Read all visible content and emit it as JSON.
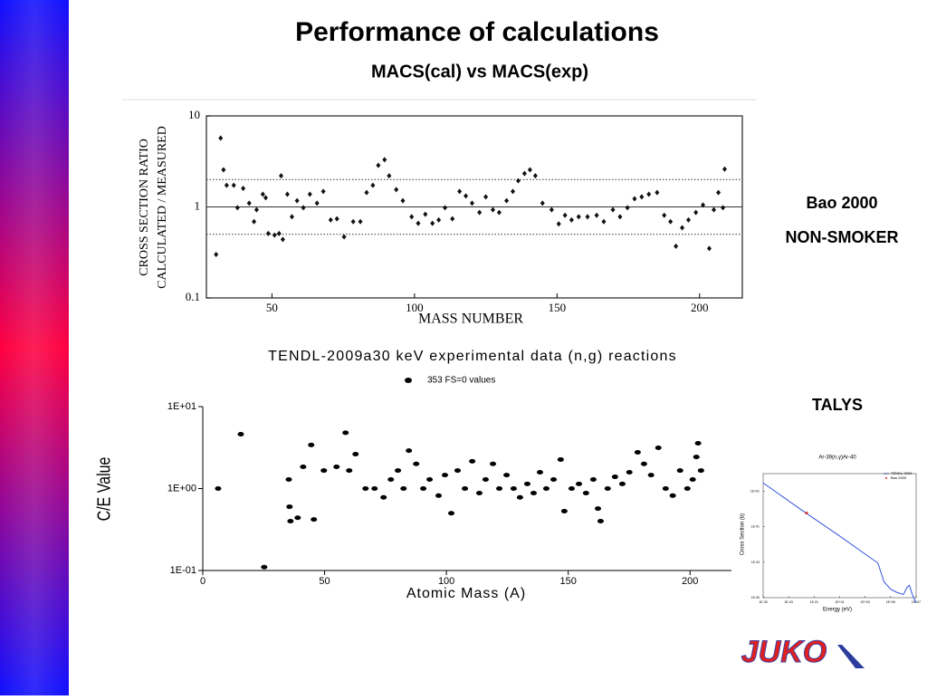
{
  "title": "Performance of calculations",
  "subtitle": "MACS(cal) vs MACS(exp)",
  "side_labels": [
    "Bao 2000",
    "NON-SMOKER",
    "TALYS"
  ],
  "logo": "JUKO",
  "chart_data": [
    {
      "type": "scatter",
      "xlabel": "MASS NUMBER",
      "ylabel": [
        "CROSS SECTION RATIO",
        "CALCULATED / MEASURED"
      ],
      "log_y": true,
      "xlim": [
        27,
        215
      ],
      "xticks": [
        50,
        100,
        150,
        200
      ],
      "ylim": [
        0.1,
        10
      ],
      "yticks": [
        0.1,
        1,
        10
      ],
      "hlines": [
        0.5,
        1,
        2
      ],
      "hline_styles": [
        "dotted",
        "solid",
        "dotted"
      ],
      "series": [
        {
          "color": "#111111",
          "x": [
            30.4,
            32,
            33,
            34.1,
            36.6,
            37.9,
            39.9,
            42,
            43.7,
            44.6,
            46.8,
            47.8,
            48.7,
            50.9,
            52.5,
            53.8,
            53.2,
            55.4,
            57,
            58.8,
            61,
            63.3,
            65.8,
            68,
            70.6,
            72.8,
            75.3,
            78.5,
            81,
            83.2,
            85.4,
            87.3,
            89.5,
            91.1,
            93.6,
            95.9,
            99,
            101.3,
            103.8,
            106.3,
            108.5,
            110.7,
            113.3,
            115.8,
            118,
            120.2,
            122.8,
            125,
            127.5,
            129.7,
            132.3,
            134.5,
            136.4,
            138.6,
            140.5,
            142.4,
            144.9,
            148.1,
            150.6,
            152.8,
            155.1,
            157.6,
            160.7,
            163.9,
            166.4,
            169.6,
            172.1,
            174.7,
            177.2,
            179.7,
            182.2,
            185.1,
            187.6,
            189.8,
            191.7,
            193.9,
            196.1,
            198.7,
            201.2,
            203.4,
            205,
            206.6,
            208.2,
            208.8
          ],
          "values": [
            0.3,
            5.7,
            2.56,
            1.73,
            1.73,
            0.98,
            1.6,
            1.1,
            0.69,
            0.93,
            1.38,
            1.26,
            0.51,
            0.49,
            0.51,
            0.44,
            2.2,
            1.38,
            0.78,
            1.17,
            0.98,
            1.38,
            1.1,
            1.48,
            0.72,
            0.74,
            0.47,
            0.69,
            0.69,
            1.44,
            1.73,
            2.86,
            3.3,
            2.2,
            1.55,
            1.17,
            0.78,
            0.66,
            0.83,
            0.66,
            0.72,
            0.98,
            0.74,
            1.48,
            1.32,
            1.1,
            0.87,
            1.29,
            0.93,
            0.87,
            1.17,
            1.48,
            1.94,
            2.33,
            2.56,
            2.2,
            1.1,
            0.93,
            0.65,
            0.81,
            0.72,
            0.78,
            0.78,
            0.81,
            0.69,
            0.93,
            0.78,
            0.98,
            1.23,
            1.29,
            1.38,
            1.44,
            0.81,
            0.69,
            0.37,
            0.59,
            0.72,
            0.87,
            1.05,
            0.35,
            0.93,
            1.44,
            0.98,
            2.6
          ]
        }
      ]
    },
    {
      "type": "scatter",
      "title": "TENDL-2009a30 keV experimental data (n,g) reactions",
      "xlabel": "Atomic Mass (A)",
      "ylabel": "C/E Value",
      "log_y": true,
      "xlim": [
        0,
        217
      ],
      "xticks": [
        0,
        50,
        100,
        150,
        200
      ],
      "ylim": [
        0.1,
        10
      ],
      "yticks": [
        {
          "value": 0.1,
          "label": "1E-01"
        },
        {
          "value": 1,
          "label": "1E+00"
        },
        {
          "value": 10,
          "label": "1E+01"
        }
      ],
      "series": [
        {
          "name": "353 FS=0 values",
          "color": "#000000",
          "x": [
            6.3,
            15.6,
            25.2,
            35.3,
            35.6,
            36,
            38.96,
            41.2,
            44.5,
            45.6,
            49.7,
            54.9,
            58.6,
            60.1,
            62.7,
            66.8,
            70.5,
            74.2,
            77.2,
            80.1,
            82.4,
            84.6,
            87.6,
            90.5,
            93.1,
            96.8,
            99.4,
            102,
            104.6,
            107.6,
            110.6,
            113.5,
            116.1,
            119.1,
            121.7,
            124.7,
            127.6,
            130.2,
            133.2,
            135.8,
            138.4,
            141,
            144,
            146.9,
            148.4,
            151.4,
            154.4,
            157.3,
            160.3,
            162.2,
            163.3,
            166.2,
            169.2,
            172.2,
            175.1,
            178.5,
            181.1,
            184,
            187,
            190,
            192.9,
            195.9,
            198.9,
            201.1,
            202.6,
            203.3,
            204.5
          ],
          "values": [
            1.0,
            4.6,
            0.11,
            1.29,
            0.6,
            0.4,
            0.44,
            1.84,
            3.4,
            0.42,
            1.66,
            1.84,
            4.8,
            1.66,
            2.63,
            1.0,
            1.0,
            0.78,
            1.29,
            1.66,
            1.0,
            2.9,
            2.0,
            1.0,
            1.29,
            0.82,
            1.46,
            0.5,
            1.66,
            1.0,
            2.15,
            0.88,
            1.29,
            2.0,
            1.0,
            1.46,
            1.0,
            0.78,
            1.14,
            0.88,
            1.58,
            1.0,
            1.29,
            2.26,
            0.53,
            1.0,
            1.14,
            0.88,
            1.29,
            0.57,
            0.4,
            1.0,
            1.39,
            1.14,
            1.58,
            2.77,
            2.0,
            1.46,
            3.14,
            1.0,
            0.82,
            1.66,
            1.0,
            1.29,
            2.43,
            3.57,
            1.66
          ]
        }
      ]
    },
    {
      "type": "line",
      "title": "Ar-39(n,γ)Ar-40",
      "xlabel": "Energy (eV)",
      "ylabel": "Cross Section (b)",
      "log_x": true,
      "log_y": true,
      "xlim": [
        1e-05,
        10000000
      ],
      "xticks": [
        {
          "value": 1e-05,
          "label": "1E-05"
        },
        {
          "value": 0.001,
          "label": "1E-03"
        },
        {
          "value": 0.1,
          "label": "1E-01"
        },
        {
          "value": 10,
          "label": "1E+01"
        },
        {
          "value": 1000,
          "label": "1E+03"
        },
        {
          "value": 100000,
          "label": "1E+05"
        },
        {
          "value": 10000000,
          "label": "1E+07"
        }
      ],
      "ylim": [
        1e-05,
        100
      ],
      "yticks": [
        {
          "value": 1e-05,
          "label": "1E-05"
        },
        {
          "value": 0.001,
          "label": "1E-03"
        },
        {
          "value": 0.1,
          "label": "1E-01"
        },
        {
          "value": 10,
          "label": "1E+01"
        }
      ],
      "x": [
        1e-05,
        0.01,
        10,
        10000,
        30000,
        100000,
        300000,
        1000000,
        2000000,
        3000000,
        5000000,
        10000000
      ],
      "series": [
        {
          "name": "TENDL-2009",
          "color": "#3355dd",
          "values": [
            30,
            0.9,
            0.03,
            0.0009,
            8e-05,
            3e-05,
            2e-05,
            1.5e-05,
            4e-05,
            5e-05,
            1.5e-05,
            5e-06
          ]
        }
      ],
      "points": [
        {
          "name": "Bao 2000",
          "color": "#dd2222",
          "x": 0.025,
          "value": 0.6
        }
      ]
    }
  ]
}
